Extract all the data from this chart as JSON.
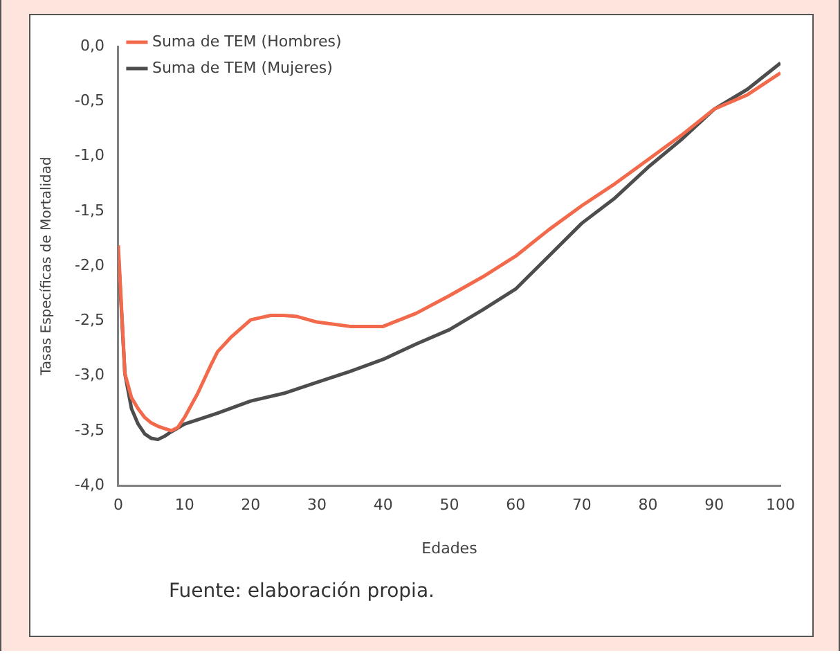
{
  "chart_data": {
    "type": "line",
    "xlabel": "Edades",
    "ylabel": "Tasas Específicas de Mortalidad",
    "annotations": [
      "Fuente: elaboración propia."
    ],
    "xlim": [
      0,
      100
    ],
    "xticks": [
      0,
      10,
      20,
      30,
      40,
      50,
      60,
      70,
      80,
      90,
      100
    ],
    "ylim": [
      -4,
      0
    ],
    "yticks": [
      {
        "value": -4,
        "label": "-4,0"
      },
      {
        "value": -3.5,
        "label": "-3,5"
      },
      {
        "value": -3,
        "label": "-3,0"
      },
      {
        "value": -2.5,
        "label": "-2,5"
      },
      {
        "value": -2,
        "label": "-2,0"
      },
      {
        "value": -1.5,
        "label": "-1,5"
      },
      {
        "value": -1,
        "label": "-1,0"
      },
      {
        "value": -0.5,
        "label": "-0,5"
      },
      {
        "value": 0,
        "label": "0,0"
      }
    ],
    "grid": false,
    "legend": "top left",
    "marker": "none",
    "line_style": "solid",
    "series": [
      {
        "name": "Suma de TEM (Hombres)",
        "color": "#f26a4b",
        "x": [
          0,
          1,
          2,
          3,
          4,
          5,
          6,
          7,
          8,
          9,
          10,
          12,
          14,
          15,
          17,
          20,
          23,
          25,
          27,
          30,
          35,
          40,
          45,
          50,
          55,
          60,
          65,
          70,
          75,
          80,
          85,
          90,
          95,
          100
        ],
        "values": [
          -1.81,
          -2.98,
          -3.2,
          -3.3,
          -3.38,
          -3.43,
          -3.46,
          -3.48,
          -3.5,
          -3.47,
          -3.38,
          -3.16,
          -2.9,
          -2.78,
          -2.65,
          -2.49,
          -2.45,
          -2.45,
          -2.46,
          -2.51,
          -2.55,
          -2.55,
          -2.43,
          -2.27,
          -2.1,
          -1.91,
          -1.67,
          -1.45,
          -1.25,
          -1.03,
          -0.81,
          -0.57,
          -0.44,
          -0.24
        ]
      },
      {
        "name": "Suma de TEM (Mujeres)",
        "color": "#4d4d4d",
        "x": [
          0,
          1,
          2,
          3,
          4,
          5,
          6,
          7,
          8,
          10,
          12,
          15,
          20,
          25,
          30,
          35,
          40,
          45,
          50,
          55,
          60,
          65,
          70,
          75,
          80,
          85,
          90,
          95,
          100
        ],
        "values": [
          -1.87,
          -2.98,
          -3.3,
          -3.44,
          -3.53,
          -3.57,
          -3.58,
          -3.55,
          -3.51,
          -3.44,
          -3.4,
          -3.34,
          -3.23,
          -3.16,
          -3.06,
          -2.96,
          -2.85,
          -2.71,
          -2.58,
          -2.4,
          -2.21,
          -1.91,
          -1.61,
          -1.38,
          -1.1,
          -0.85,
          -0.57,
          -0.39,
          -0.15
        ]
      }
    ]
  }
}
